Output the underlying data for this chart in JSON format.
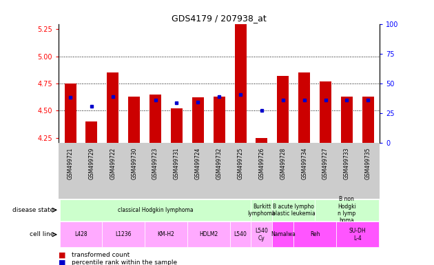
{
  "title": "GDS4179 / 207938_at",
  "samples": [
    "GSM499721",
    "GSM499729",
    "GSM499722",
    "GSM499730",
    "GSM499723",
    "GSM499731",
    "GSM499724",
    "GSM499732",
    "GSM499725",
    "GSM499726",
    "GSM499728",
    "GSM499734",
    "GSM499727",
    "GSM499733",
    "GSM499735"
  ],
  "bar_values": [
    4.75,
    4.4,
    4.85,
    4.63,
    4.65,
    4.52,
    4.62,
    4.63,
    5.35,
    4.25,
    4.82,
    4.85,
    4.77,
    4.63,
    4.63
  ],
  "dot_values": [
    4.62,
    4.54,
    4.63,
    null,
    4.6,
    4.57,
    4.58,
    4.63,
    4.65,
    4.5,
    4.6,
    4.6,
    4.6,
    4.6,
    4.6
  ],
  "ylim_left": [
    4.2,
    5.3
  ],
  "ylim_right": [
    0,
    100
  ],
  "yticks_left": [
    4.25,
    4.5,
    4.75,
    5.0,
    5.25
  ],
  "yticks_right": [
    0,
    25,
    50,
    75,
    100
  ],
  "bar_color": "#cc0000",
  "dot_color": "#0000cc",
  "bar_bottom": 4.2,
  "disease_state_labels": [
    {
      "label": "classical Hodgkin lymphoma",
      "start": 0,
      "end": 9
    },
    {
      "label": "Burkitt\nlymphoma",
      "start": 9,
      "end": 10
    },
    {
      "label": "B acute lympho\nblastic leukemia",
      "start": 10,
      "end": 12
    },
    {
      "label": "B non\nHodgki\nn lymp\nhoma",
      "start": 12,
      "end": 15
    }
  ],
  "cell_line_labels": [
    {
      "label": "L428",
      "start": 0,
      "end": 2,
      "color": "#ffaaff"
    },
    {
      "label": "L1236",
      "start": 2,
      "end": 4,
      "color": "#ffaaff"
    },
    {
      "label": "KM-H2",
      "start": 4,
      "end": 6,
      "color": "#ffaaff"
    },
    {
      "label": "HDLM2",
      "start": 6,
      "end": 8,
      "color": "#ffaaff"
    },
    {
      "label": "L540",
      "start": 8,
      "end": 9,
      "color": "#ffaaff"
    },
    {
      "label": "L540\nCy",
      "start": 9,
      "end": 10,
      "color": "#ffaaff"
    },
    {
      "label": "Namalwa",
      "start": 10,
      "end": 11,
      "color": "#ff55ff"
    },
    {
      "label": "Reh",
      "start": 11,
      "end": 13,
      "color": "#ff55ff"
    },
    {
      "label": "SU-DH\nL-4",
      "start": 13,
      "end": 15,
      "color": "#ff55ff"
    }
  ],
  "legend_items": [
    {
      "label": "transformed count",
      "color": "#cc0000"
    },
    {
      "label": "percentile rank within the sample",
      "color": "#0000cc"
    }
  ],
  "background_color": "#ffffff",
  "sample_bg": "#cccccc",
  "disease_bg": "#ccffcc"
}
